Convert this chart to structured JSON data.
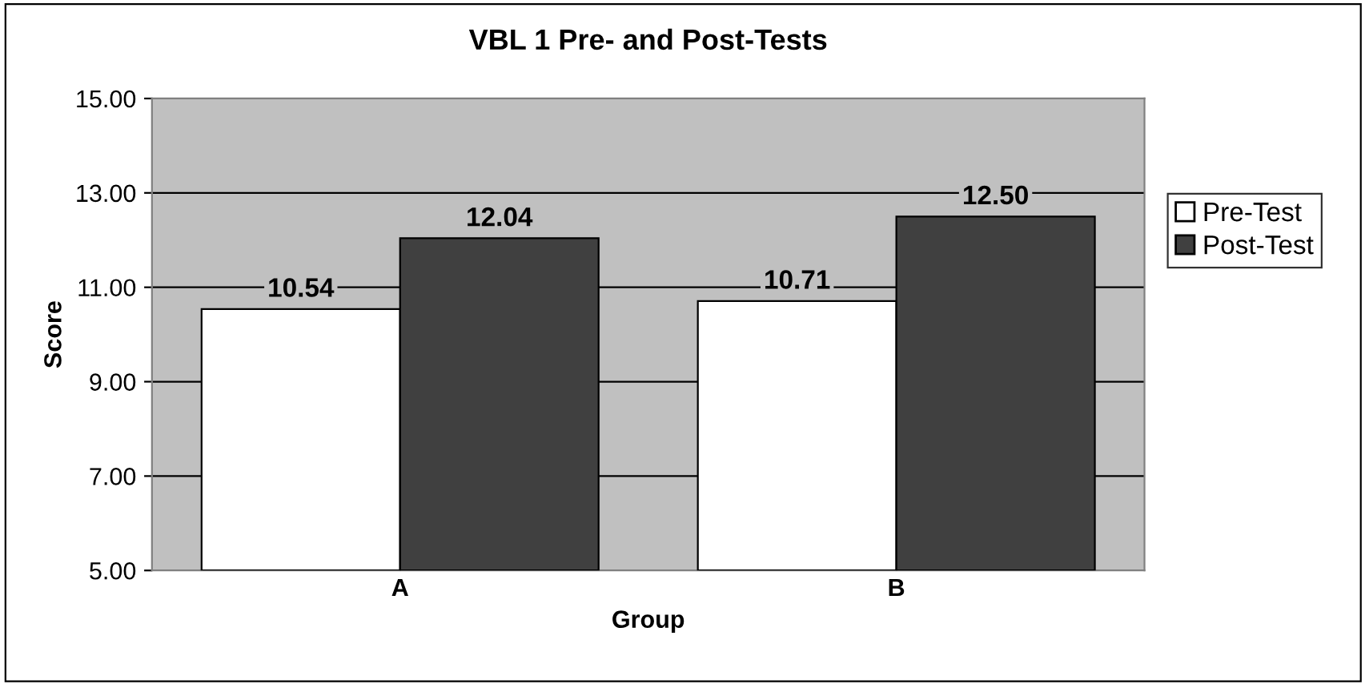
{
  "chart_data": {
    "type": "bar",
    "title": "VBL 1 Pre- and Post-Tests",
    "xlabel": "Group",
    "ylabel": "Score",
    "categories": [
      "A",
      "B"
    ],
    "series": [
      {
        "name": "Pre-Test",
        "color": "#ffffff",
        "values": [
          10.54,
          10.71
        ]
      },
      {
        "name": "Post-Test",
        "color": "#404040",
        "values": [
          12.04,
          12.5
        ]
      }
    ],
    "value_labels": [
      [
        "10.54",
        "10.71"
      ],
      [
        "12.04",
        "12.50"
      ]
    ],
    "ylim": [
      5,
      15
    ],
    "yticks": [
      {
        "value": 5,
        "label": "5.00"
      },
      {
        "value": 7,
        "label": "7.00"
      },
      {
        "value": 9,
        "label": "9.00"
      },
      {
        "value": 11,
        "label": "11.00"
      },
      {
        "value": 13,
        "label": "13.00"
      },
      {
        "value": 15,
        "label": "15.00"
      }
    ],
    "grid": "y",
    "legend": "right"
  }
}
